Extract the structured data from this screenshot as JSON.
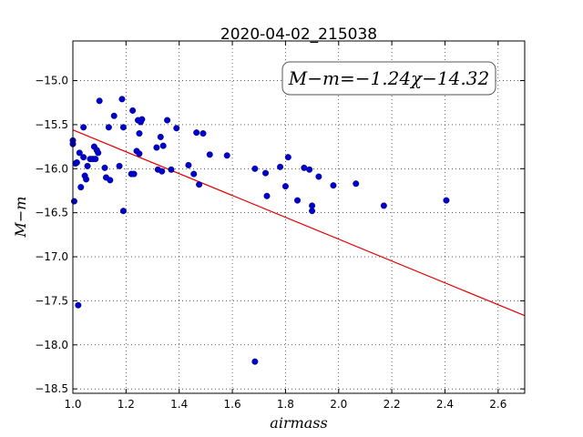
{
  "chart_data": {
    "type": "scatter",
    "title": "2020-04-02_215038",
    "xlabel": "airmass",
    "ylabel": "M−m",
    "xlim": [
      1.0,
      2.7
    ],
    "ylim": [
      -18.55,
      -14.55
    ],
    "y_inverted": true,
    "grid": true,
    "x_ticks": [
      1.0,
      1.2,
      1.4,
      1.6,
      1.8,
      2.0,
      2.2,
      2.4,
      2.6
    ],
    "x_tick_labels": [
      "1.0",
      "1.2",
      "1.4",
      "1.6",
      "1.8",
      "2.0",
      "2.2",
      "2.4",
      "2.6"
    ],
    "y_ticks": [
      -15.0,
      -15.5,
      -16.0,
      -16.5,
      -17.0,
      -17.5,
      -18.0,
      -18.5
    ],
    "y_tick_labels": [
      "−15.0",
      "−15.5",
      "−16.0",
      "−16.5",
      "−17.0",
      "−17.5",
      "−18.0",
      "−18.5"
    ],
    "annotation": "M−m=−1.24χ−14.32",
    "fit": {
      "slope": -1.24,
      "intercept": -14.32,
      "color": "#e60000"
    },
    "marker_color": "#0000cc",
    "points": [
      [
        1.0,
        -15.68
      ],
      [
        1.0,
        -15.72
      ],
      [
        1.005,
        -16.37
      ],
      [
        1.01,
        -15.94
      ],
      [
        1.015,
        -15.93
      ],
      [
        1.02,
        -17.55
      ],
      [
        1.025,
        -15.82
      ],
      [
        1.03,
        -16.21
      ],
      [
        1.04,
        -15.53
      ],
      [
        1.04,
        -15.87
      ],
      [
        1.045,
        -16.08
      ],
      [
        1.05,
        -16.12
      ],
      [
        1.055,
        -15.97
      ],
      [
        1.065,
        -15.89
      ],
      [
        1.075,
        -15.89
      ],
      [
        1.08,
        -15.75
      ],
      [
        1.085,
        -15.89
      ],
      [
        1.09,
        -15.79
      ],
      [
        1.095,
        -15.82
      ],
      [
        1.1,
        -15.23
      ],
      [
        1.12,
        -15.99
      ],
      [
        1.125,
        -16.1
      ],
      [
        1.135,
        -15.53
      ],
      [
        1.14,
        -16.13
      ],
      [
        1.155,
        -15.4
      ],
      [
        1.175,
        -15.97
      ],
      [
        1.185,
        -15.21
      ],
      [
        1.19,
        -15.53
      ],
      [
        1.19,
        -16.48
      ],
      [
        1.22,
        -16.06
      ],
      [
        1.225,
        -15.34
      ],
      [
        1.23,
        -16.06
      ],
      [
        1.24,
        -15.8
      ],
      [
        1.245,
        -15.45
      ],
      [
        1.25,
        -15.6
      ],
      [
        1.25,
        -15.83
      ],
      [
        1.255,
        -15.47
      ],
      [
        1.26,
        -15.44
      ],
      [
        1.315,
        -15.76
      ],
      [
        1.32,
        -16.01
      ],
      [
        1.33,
        -15.64
      ],
      [
        1.335,
        -16.03
      ],
      [
        1.34,
        -15.74
      ],
      [
        1.355,
        -15.45
      ],
      [
        1.37,
        -16.01
      ],
      [
        1.39,
        -15.54
      ],
      [
        1.435,
        -15.96
      ],
      [
        1.455,
        -16.06
      ],
      [
        1.465,
        -15.59
      ],
      [
        1.475,
        -16.18
      ],
      [
        1.49,
        -15.6
      ],
      [
        1.515,
        -15.84
      ],
      [
        1.58,
        -15.85
      ],
      [
        1.685,
        -16.0
      ],
      [
        1.685,
        -18.19
      ],
      [
        1.725,
        -16.05
      ],
      [
        1.73,
        -16.31
      ],
      [
        1.78,
        -15.98
      ],
      [
        1.8,
        -16.2
      ],
      [
        1.81,
        -15.87
      ],
      [
        1.845,
        -16.36
      ],
      [
        1.87,
        -15.99
      ],
      [
        1.89,
        -16.01
      ],
      [
        1.9,
        -16.42
      ],
      [
        1.9,
        -16.48
      ],
      [
        1.925,
        -16.09
      ],
      [
        1.98,
        -16.19
      ],
      [
        2.065,
        -16.17
      ],
      [
        2.17,
        -16.42
      ],
      [
        2.405,
        -16.36
      ]
    ]
  }
}
